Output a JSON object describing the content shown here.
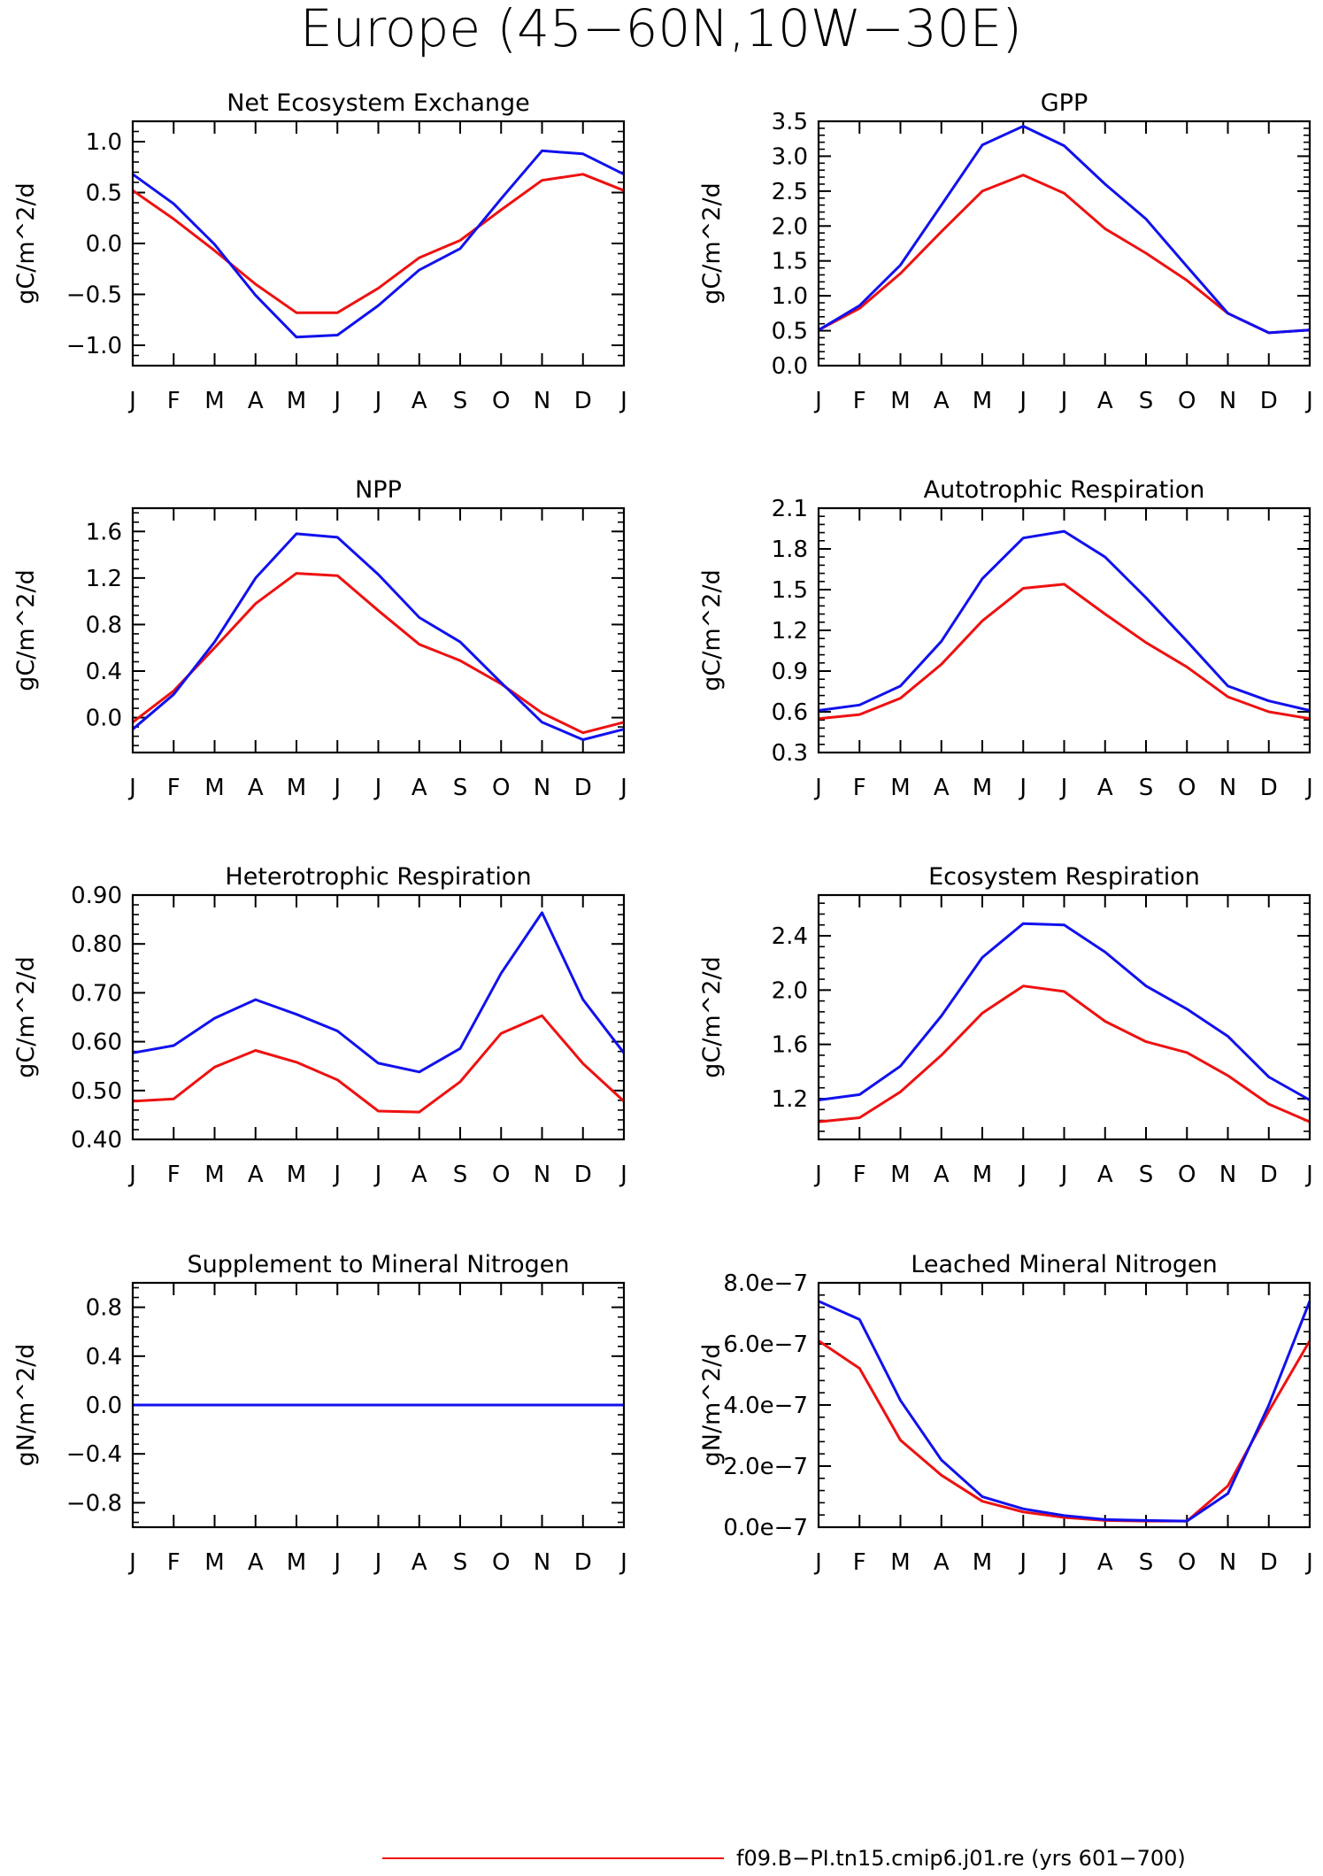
{
  "figure": {
    "title": "Europe (45−60N,10W−30E)",
    "months": [
      "J",
      "F",
      "M",
      "A",
      "M",
      "J",
      "J",
      "A",
      "S",
      "O",
      "N",
      "D",
      "J"
    ],
    "colors": {
      "red": "#ee1111",
      "blue": "#1111ee"
    },
    "legend": [
      {
        "color": "#ee1111",
        "label": "f09.B−PI.tn15.cmip6.j01.re (yrs 601−700)"
      }
    ]
  },
  "chart_data": [
    {
      "type": "line",
      "title": "Net Ecosystem Exchange",
      "ylabel": "gC/m^2/d",
      "ylim": [
        -1.2,
        1.2
      ],
      "yticks": [
        -1.0,
        -0.5,
        0.0,
        0.5,
        1.0
      ],
      "ytick_labels": [
        "−1.0",
        "−0.5",
        "0.0",
        "0.5",
        "1.0"
      ],
      "x": [
        "J",
        "F",
        "M",
        "A",
        "M",
        "J",
        "J",
        "A",
        "S",
        "O",
        "N",
        "D",
        "J"
      ],
      "series": [
        {
          "color": "#ee1111",
          "values": [
            0.52,
            0.24,
            -0.07,
            -0.4,
            -0.68,
            -0.68,
            -0.44,
            -0.14,
            0.03,
            0.33,
            0.62,
            0.68,
            0.52
          ]
        },
        {
          "color": "#1111ee",
          "values": [
            0.68,
            0.39,
            -0.01,
            -0.51,
            -0.92,
            -0.9,
            -0.61,
            -0.26,
            -0.05,
            0.44,
            0.91,
            0.88,
            0.68
          ]
        }
      ]
    },
    {
      "type": "line",
      "title": "GPP",
      "ylabel": "gC/m^2/d",
      "ylim": [
        0.0,
        3.5
      ],
      "yticks": [
        0.0,
        0.5,
        1.0,
        1.5,
        2.0,
        2.5,
        3.0,
        3.5
      ],
      "ytick_labels": [
        "0.0",
        "0.5",
        "1.0",
        "1.5",
        "2.0",
        "2.5",
        "3.0",
        "3.5"
      ],
      "x": [
        "J",
        "F",
        "M",
        "A",
        "M",
        "J",
        "J",
        "A",
        "S",
        "O",
        "N",
        "D",
        "J"
      ],
      "series": [
        {
          "color": "#ee1111",
          "values": [
            0.51,
            0.82,
            1.32,
            1.92,
            2.5,
            2.73,
            2.47,
            1.96,
            1.61,
            1.22,
            0.75,
            0.47,
            0.51
          ]
        },
        {
          "color": "#1111ee",
          "values": [
            0.51,
            0.86,
            1.44,
            2.3,
            3.16,
            3.43,
            3.15,
            2.6,
            2.1,
            1.42,
            0.75,
            0.47,
            0.51
          ]
        }
      ]
    },
    {
      "type": "line",
      "title": "NPP",
      "ylabel": "gC/m^2/d",
      "ylim": [
        -0.3,
        1.8
      ],
      "yticks": [
        0.0,
        0.4,
        0.8,
        1.2,
        1.6
      ],
      "ytick_labels": [
        "0.0",
        "0.4",
        "0.8",
        "1.2",
        "1.6"
      ],
      "x": [
        "J",
        "F",
        "M",
        "A",
        "M",
        "J",
        "J",
        "A",
        "S",
        "O",
        "N",
        "D",
        "J"
      ],
      "series": [
        {
          "color": "#ee1111",
          "values": [
            -0.04,
            0.23,
            0.6,
            0.98,
            1.24,
            1.22,
            0.92,
            0.63,
            0.49,
            0.29,
            0.04,
            -0.13,
            -0.04
          ]
        },
        {
          "color": "#1111ee",
          "values": [
            -0.1,
            0.2,
            0.65,
            1.2,
            1.58,
            1.55,
            1.23,
            0.86,
            0.65,
            0.3,
            -0.04,
            -0.19,
            -0.1
          ]
        }
      ]
    },
    {
      "type": "line",
      "title": "Autotrophic Respiration",
      "ylabel": "gC/m^2/d",
      "ylim": [
        0.3,
        2.1
      ],
      "yticks": [
        0.3,
        0.6,
        0.9,
        1.2,
        1.5,
        1.8,
        2.1
      ],
      "ytick_labels": [
        "0.3",
        "0.6",
        "0.9",
        "1.2",
        "1.5",
        "1.8",
        "2.1"
      ],
      "x": [
        "J",
        "F",
        "M",
        "A",
        "M",
        "J",
        "J",
        "A",
        "S",
        "O",
        "N",
        "D",
        "J"
      ],
      "series": [
        {
          "color": "#ee1111",
          "values": [
            0.55,
            0.58,
            0.7,
            0.95,
            1.27,
            1.51,
            1.54,
            1.32,
            1.11,
            0.93,
            0.71,
            0.6,
            0.55
          ]
        },
        {
          "color": "#1111ee",
          "values": [
            0.61,
            0.65,
            0.79,
            1.12,
            1.58,
            1.88,
            1.93,
            1.74,
            1.44,
            1.12,
            0.79,
            0.68,
            0.61
          ]
        }
      ]
    },
    {
      "type": "line",
      "title": "Heterotrophic Respiration",
      "ylabel": "gC/m^2/d",
      "ylim": [
        0.4,
        0.9
      ],
      "yticks": [
        0.4,
        0.5,
        0.6,
        0.7,
        0.8,
        0.9
      ],
      "ytick_labels": [
        "0.40",
        "0.50",
        "0.60",
        "0.70",
        "0.80",
        "0.90"
      ],
      "x": [
        "J",
        "F",
        "M",
        "A",
        "M",
        "J",
        "J",
        "A",
        "S",
        "O",
        "N",
        "D",
        "J"
      ],
      "series": [
        {
          "color": "#ee1111",
          "values": [
            0.478,
            0.483,
            0.548,
            0.582,
            0.558,
            0.522,
            0.458,
            0.456,
            0.518,
            0.617,
            0.653,
            0.555,
            0.478
          ]
        },
        {
          "color": "#1111ee",
          "values": [
            0.577,
            0.592,
            0.648,
            0.686,
            0.656,
            0.622,
            0.556,
            0.538,
            0.586,
            0.74,
            0.864,
            0.686,
            0.577
          ]
        }
      ]
    },
    {
      "type": "line",
      "title": "Ecosystem Respiration",
      "ylabel": "gC/m^2/d",
      "ylim": [
        0.9,
        2.7
      ],
      "yticks": [
        1.2,
        1.6,
        2.0,
        2.4
      ],
      "ytick_labels": [
        "1.2",
        "1.6",
        "2.0",
        "2.4"
      ],
      "x": [
        "J",
        "F",
        "M",
        "A",
        "M",
        "J",
        "J",
        "A",
        "S",
        "O",
        "N",
        "D",
        "J"
      ],
      "series": [
        {
          "color": "#ee1111",
          "values": [
            1.03,
            1.06,
            1.25,
            1.52,
            1.83,
            2.03,
            1.99,
            1.77,
            1.62,
            1.54,
            1.37,
            1.16,
            1.03
          ]
        },
        {
          "color": "#1111ee",
          "values": [
            1.19,
            1.23,
            1.44,
            1.81,
            2.24,
            2.49,
            2.48,
            2.28,
            2.03,
            1.86,
            1.66,
            1.36,
            1.19
          ]
        }
      ]
    },
    {
      "type": "line",
      "title": "Supplement to Mineral Nitrogen",
      "ylabel": "gN/m^2/d",
      "ylim": [
        -1.0,
        1.0
      ],
      "yticks": [
        -0.8,
        -0.4,
        0.0,
        0.4,
        0.8
      ],
      "ytick_labels": [
        "−0.8",
        "−0.4",
        "0.0",
        "0.4",
        "0.8"
      ],
      "x": [
        "J",
        "F",
        "M",
        "A",
        "M",
        "J",
        "J",
        "A",
        "S",
        "O",
        "N",
        "D",
        "J"
      ],
      "series": [
        {
          "color": "#ee1111",
          "values": [
            0,
            0,
            0,
            0,
            0,
            0,
            0,
            0,
            0,
            0,
            0,
            0,
            0
          ]
        },
        {
          "color": "#1111ee",
          "values": [
            0,
            0,
            0,
            0,
            0,
            0,
            0,
            0,
            0,
            0,
            0,
            0,
            0
          ]
        }
      ]
    },
    {
      "type": "line",
      "title": "Leached Mineral Nitrogen",
      "ylabel": "gN/m^2/d",
      "ylim": [
        0.0,
        8e-07
      ],
      "yticks": [
        0.0,
        2e-07,
        4e-07,
        6e-07,
        8e-07
      ],
      "ytick_labels": [
        "0.0e−7",
        "2.0e−7",
        "4.0e−7",
        "6.0e−7",
        "8.0e−7"
      ],
      "x": [
        "J",
        "F",
        "M",
        "A",
        "M",
        "J",
        "J",
        "A",
        "S",
        "O",
        "N",
        "D",
        "J"
      ],
      "series": [
        {
          "color": "#ee1111",
          "values": [
            6.1e-07,
            5.2e-07,
            2.85e-07,
            1.7e-07,
            8.5e-08,
            5e-08,
            3.2e-08,
            2.2e-08,
            2e-08,
            2e-08,
            1.35e-07,
            3.8e-07,
            6.1e-07
          ]
        },
        {
          "color": "#1111ee",
          "values": [
            7.4e-07,
            6.8e-07,
            4.15e-07,
            2.2e-07,
            1e-07,
            6e-08,
            3.8e-08,
            2.5e-08,
            2.2e-08,
            2e-08,
            1.1e-07,
            4e-07,
            7.4e-07
          ]
        }
      ]
    }
  ]
}
